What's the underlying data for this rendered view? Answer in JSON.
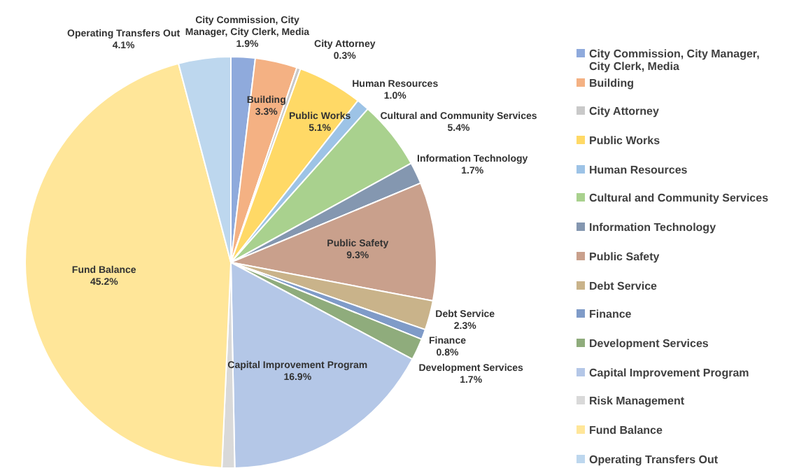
{
  "chart_data": {
    "type": "pie",
    "categories": [
      "City Commission, City Manager, City Clerk, Media",
      "Building",
      "City Attorney",
      "Public Works",
      "Human Resources",
      "Cultural and Community Services",
      "Information Technology",
      "Public Safety",
      "Debt Service",
      "Finance",
      "Development Services",
      "Capital Improvement Program",
      "Risk Management",
      "Fund Balance",
      "Operating Transfers Out"
    ],
    "values": [
      1.9,
      3.3,
      0.3,
      5.1,
      1.0,
      5.4,
      1.7,
      9.3,
      2.3,
      0.8,
      1.7,
      16.9,
      1.0,
      45.2,
      4.1
    ],
    "value_labels": [
      "1.9%",
      "3.3%",
      "0.3%",
      "5.1%",
      "1.0%",
      "5.4%",
      "1.7%",
      "9.3%",
      "2.3%",
      "0.8%",
      "1.7%",
      "16.9%",
      null,
      "45.2%",
      "4.1%"
    ],
    "colors": [
      "#8faadc",
      "#f4b183",
      "#c9c9c9",
      "#ffd966",
      "#9dc3e6",
      "#a9d18e",
      "#8497b0",
      "#c9a08c",
      "#c9b38a",
      "#7f9bc8",
      "#8fac7c",
      "#b4c7e7",
      "#d9d9d9",
      "#ffe699",
      "#bdd7ee"
    ],
    "legend": "right"
  }
}
